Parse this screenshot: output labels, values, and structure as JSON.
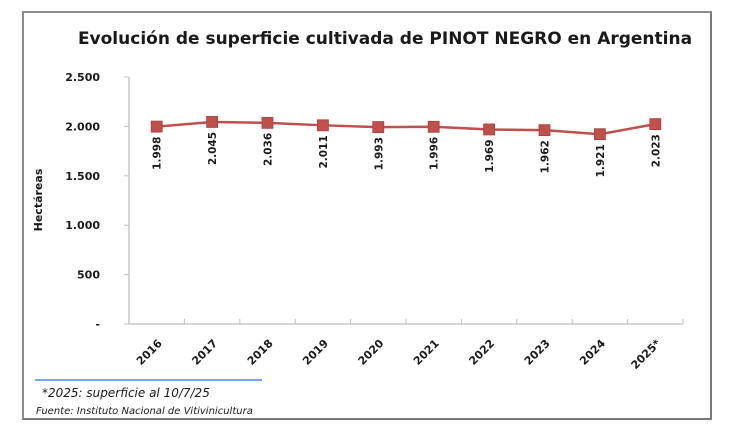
{
  "chart_data": {
    "type": "line",
    "title": "Evolución de superficie cultivada de PINOT NEGRO en Argentina",
    "xlabel": "",
    "ylabel": "Hectáreas",
    "categories": [
      "2016",
      "2017",
      "2018",
      "2019",
      "2020",
      "2021",
      "2022",
      "2023",
      "2024",
      "2025*"
    ],
    "series": [
      {
        "name": "Pinot Negro",
        "values": [
          1998,
          2045,
          2036,
          2011,
          1993,
          1996,
          1969,
          1962,
          1921,
          2023
        ],
        "data_labels": [
          "1.998",
          "2.045",
          "2.036",
          "2.011",
          "1.993",
          "1.996",
          "1.969",
          "1.962",
          "1.921",
          "2.023"
        ],
        "color": "#c0504d",
        "marker": "square"
      }
    ],
    "ylim": [
      0,
      2500
    ],
    "yticks": [
      0,
      500,
      1000,
      1500,
      2000,
      2500
    ],
    "ytick_labels": [
      "-",
      "500",
      "1.000",
      "1.500",
      "2.000",
      "2.500"
    ],
    "grid": false,
    "legend": "none",
    "axis_color": "#bfbfbf"
  },
  "footnotes": {
    "note": "*2025: superficie al 10/7/25",
    "source": "Fuente: Instituto Nacional de Vitivinicultura",
    "rule_color": "#4a86e8"
  }
}
